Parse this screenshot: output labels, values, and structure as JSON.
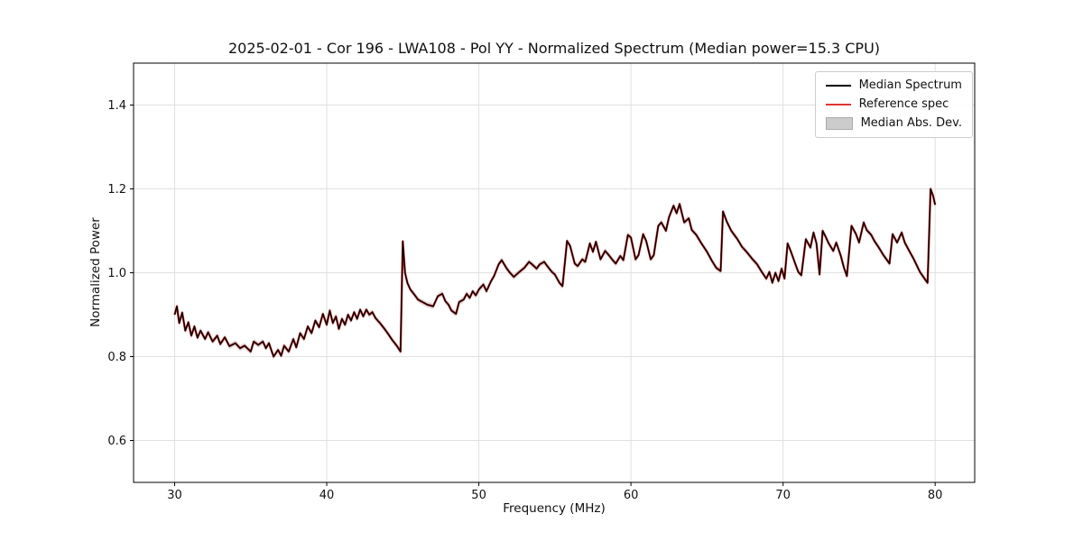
{
  "chart_data": {
    "type": "line",
    "title": "2025-02-01 - Cor 196 - LWA108 - Pol YY - Normalized Spectrum (Median power=15.3 CPU)",
    "xlabel": "Frequency (MHz)",
    "ylabel": "Normalized Power",
    "xlim": [
      27.3,
      82.6
    ],
    "ylim": [
      0.5,
      1.5
    ],
    "xticks": [
      30,
      40,
      50,
      60,
      70,
      80
    ],
    "xtick_labels": [
      "30",
      "40",
      "50",
      "60",
      "70",
      "80"
    ],
    "yticks": [
      0.6,
      0.8,
      1.0,
      1.2,
      1.4
    ],
    "ytick_labels": [
      "0.6",
      "0.8",
      "1.0",
      "1.2",
      "1.4"
    ],
    "grid": true,
    "legend_position": "upper right",
    "x": [
      30.0,
      30.15,
      30.3,
      30.5,
      30.7,
      30.9,
      31.1,
      31.3,
      31.5,
      31.7,
      32.0,
      32.2,
      32.5,
      32.8,
      33.0,
      33.3,
      33.6,
      34.0,
      34.3,
      34.6,
      35.0,
      35.2,
      35.5,
      35.8,
      36.0,
      36.2,
      36.5,
      36.8,
      37.0,
      37.2,
      37.5,
      37.8,
      38.0,
      38.25,
      38.5,
      38.75,
      39.0,
      39.25,
      39.5,
      39.75,
      40.0,
      40.2,
      40.4,
      40.6,
      40.8,
      41.0,
      41.2,
      41.4,
      41.6,
      41.8,
      42.0,
      42.2,
      42.4,
      42.6,
      42.8,
      43.0,
      43.2,
      43.5,
      43.8,
      44.0,
      44.3,
      44.6,
      44.85,
      45.0,
      45.15,
      45.3,
      45.5,
      45.8,
      46.0,
      46.3,
      46.6,
      47.0,
      47.3,
      47.6,
      47.8,
      48.0,
      48.2,
      48.5,
      48.7,
      49.0,
      49.2,
      49.4,
      49.6,
      49.8,
      50.0,
      50.3,
      50.5,
      50.8,
      51.0,
      51.3,
      51.5,
      51.8,
      52.0,
      52.3,
      52.6,
      53.0,
      53.3,
      53.5,
      53.8,
      54.0,
      54.3,
      54.5,
      54.8,
      55.0,
      55.3,
      55.5,
      55.8,
      56.0,
      56.3,
      56.5,
      56.8,
      57.0,
      57.3,
      57.5,
      57.7,
      58.0,
      58.3,
      58.5,
      58.8,
      59.0,
      59.3,
      59.5,
      59.8,
      60.0,
      60.3,
      60.5,
      60.8,
      61.0,
      61.3,
      61.5,
      61.8,
      62.0,
      62.3,
      62.5,
      62.8,
      63.0,
      63.2,
      63.5,
      63.8,
      64.0,
      64.3,
      64.6,
      65.0,
      65.3,
      65.6,
      65.9,
      66.05,
      66.3,
      66.6,
      67.0,
      67.3,
      67.6,
      68.0,
      68.3,
      68.6,
      68.9,
      69.1,
      69.3,
      69.5,
      69.7,
      69.9,
      70.1,
      70.3,
      70.5,
      70.8,
      71.0,
      71.2,
      71.5,
      71.8,
      72.0,
      72.2,
      72.4,
      72.6,
      72.8,
      73.0,
      73.3,
      73.5,
      73.8,
      74.0,
      74.2,
      74.5,
      74.8,
      75.0,
      75.3,
      75.5,
      75.8,
      76.0,
      76.3,
      76.6,
      77.0,
      77.2,
      77.5,
      77.8,
      78.0,
      78.3,
      78.6,
      79.0,
      79.3,
      79.5,
      79.7,
      79.85,
      80.0
    ],
    "series": [
      {
        "name": "Median Spectrum",
        "color": "#000000",
        "line_width": 1.5,
        "values": [
          0.9,
          0.92,
          0.88,
          0.905,
          0.862,
          0.882,
          0.85,
          0.872,
          0.845,
          0.862,
          0.842,
          0.858,
          0.836,
          0.85,
          0.83,
          0.846,
          0.825,
          0.832,
          0.82,
          0.826,
          0.812,
          0.836,
          0.828,
          0.836,
          0.82,
          0.832,
          0.8,
          0.816,
          0.802,
          0.826,
          0.812,
          0.842,
          0.822,
          0.856,
          0.842,
          0.872,
          0.856,
          0.886,
          0.87,
          0.902,
          0.876,
          0.91,
          0.88,
          0.896,
          0.866,
          0.89,
          0.876,
          0.9,
          0.886,
          0.906,
          0.89,
          0.912,
          0.896,
          0.912,
          0.9,
          0.906,
          0.892,
          0.88,
          0.866,
          0.856,
          0.84,
          0.826,
          0.812,
          1.075,
          1.0,
          0.976,
          0.96,
          0.946,
          0.936,
          0.93,
          0.924,
          0.92,
          0.944,
          0.95,
          0.932,
          0.924,
          0.91,
          0.902,
          0.93,
          0.936,
          0.95,
          0.94,
          0.956,
          0.946,
          0.96,
          0.972,
          0.956,
          0.98,
          0.992,
          1.02,
          1.03,
          1.012,
          1.002,
          0.99,
          1.0,
          1.012,
          1.026,
          1.02,
          1.01,
          1.02,
          1.026,
          1.016,
          1.002,
          0.996,
          0.976,
          0.968,
          1.076,
          1.064,
          1.022,
          1.016,
          1.032,
          1.026,
          1.07,
          1.05,
          1.074,
          1.032,
          1.052,
          1.044,
          1.03,
          1.022,
          1.04,
          1.03,
          1.09,
          1.084,
          1.032,
          1.042,
          1.092,
          1.076,
          1.032,
          1.042,
          1.112,
          1.12,
          1.1,
          1.132,
          1.16,
          1.142,
          1.164,
          1.12,
          1.13,
          1.102,
          1.09,
          1.072,
          1.05,
          1.03,
          1.012,
          1.004,
          1.146,
          1.122,
          1.1,
          1.08,
          1.062,
          1.05,
          1.032,
          1.02,
          1.002,
          0.986,
          1.002,
          0.976,
          1.0,
          0.98,
          1.01,
          0.986,
          1.07,
          1.052,
          1.022,
          1.002,
          0.994,
          1.08,
          1.06,
          1.096,
          1.07,
          0.996,
          1.1,
          1.086,
          1.07,
          1.052,
          1.072,
          1.04,
          1.012,
          0.992,
          1.112,
          1.092,
          1.072,
          1.12,
          1.102,
          1.09,
          1.076,
          1.06,
          1.042,
          1.022,
          1.092,
          1.072,
          1.096,
          1.072,
          1.052,
          1.032,
          1.002,
          0.986,
          0.976,
          1.2,
          1.185,
          1.162
        ]
      },
      {
        "name": "Reference spec",
        "color": "#e03535",
        "line_width": 1.2,
        "values_same_as": 0
      }
    ],
    "band": {
      "name": "Median Abs. Dev.",
      "color": "#c8c8c8",
      "half_width": 0.007
    }
  },
  "legend": {
    "entries": [
      {
        "label": "Median Spectrum",
        "swatch": "line",
        "color": "#000000"
      },
      {
        "label": "Reference spec",
        "swatch": "line",
        "color": "#e03535"
      },
      {
        "label": "Median Abs. Dev.",
        "swatch": "patch",
        "color": "#cccccc"
      }
    ]
  }
}
